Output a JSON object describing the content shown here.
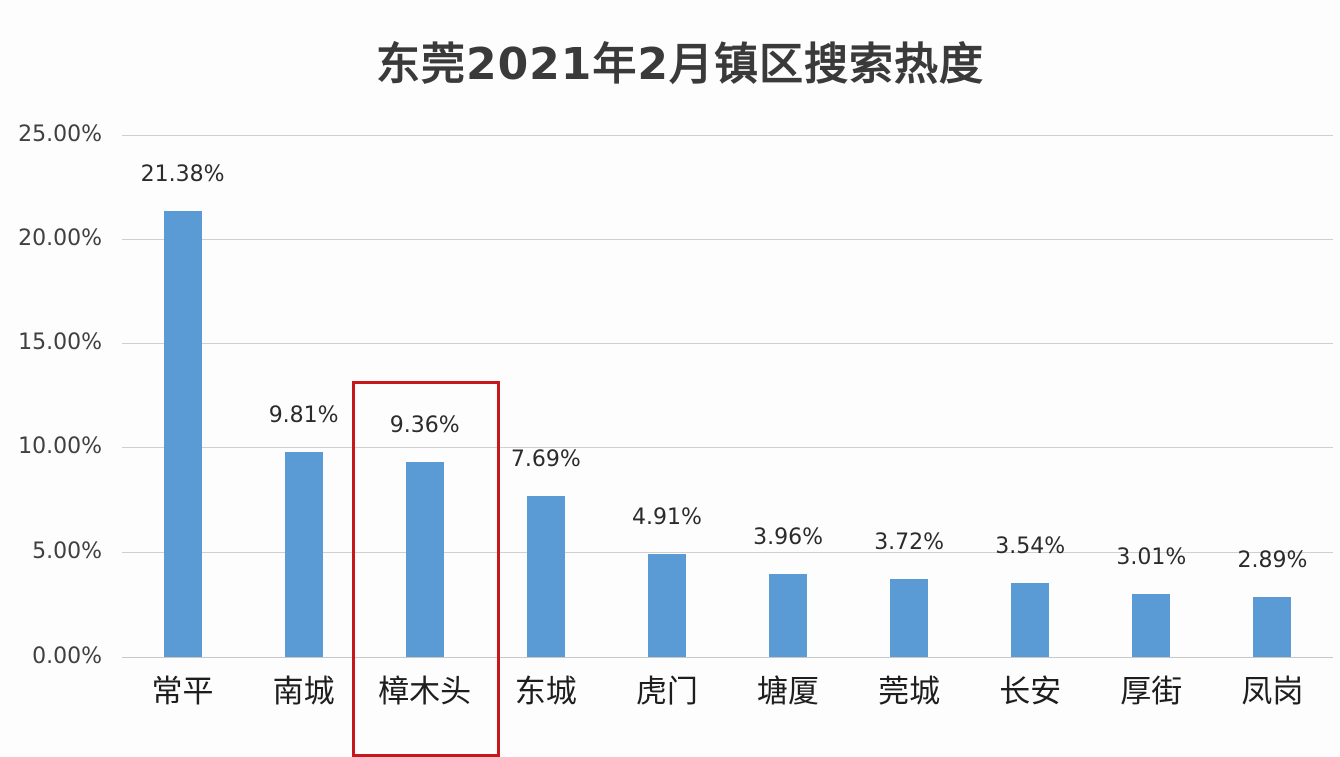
{
  "chart_data": {
    "type": "bar",
    "title": "东莞2021年2月镇区搜索热度",
    "xlabel": "",
    "ylabel": "",
    "categories": [
      "常平",
      "南城",
      "樟木头",
      "东城",
      "虎门",
      "塘厦",
      "莞城",
      "长安",
      "厚街",
      "凤岗"
    ],
    "values": [
      21.38,
      9.81,
      9.36,
      7.69,
      4.91,
      3.96,
      3.72,
      3.54,
      3.01,
      2.89
    ],
    "value_labels": [
      "21.38%",
      "9.81%",
      "9.36%",
      "7.69%",
      "4.91%",
      "3.96%",
      "3.72%",
      "3.54%",
      "3.01%",
      "2.89%"
    ],
    "unit": "%",
    "ylim": [
      0,
      25
    ],
    "yticks": [
      0,
      5,
      10,
      15,
      20,
      25
    ],
    "ytick_labels": [
      "0.00%",
      "5.00%",
      "10.00%",
      "15.00%",
      "20.00%",
      "25.00%"
    ],
    "grid": true,
    "legend": null,
    "highlighted_category": "樟木头",
    "annotations": [
      {
        "type": "rectangle",
        "target": "樟木头",
        "color": "#c8161d"
      }
    ]
  },
  "colors": {
    "bar": "#5b9bd5",
    "highlight_box": "#c8161d",
    "gridline": "#d0d0d0"
  }
}
